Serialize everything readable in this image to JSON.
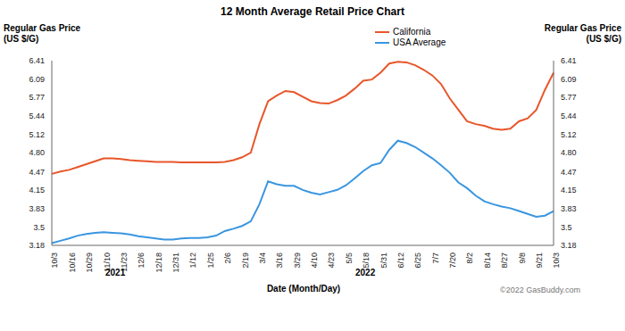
{
  "chart_data": {
    "type": "line",
    "title": "12 Month Average Retail Price Chart",
    "y_label": "Regular Gas Price (US $/G)",
    "y2_label": "Regular Gas Price (US $/G)",
    "x_label": "Date (Month/Day)",
    "annotations": [
      "2021",
      "2022",
      "©2022 GasBuddy.com"
    ],
    "categories": [
      "10/3",
      null,
      "10/16",
      null,
      "10/29",
      null,
      "11/10",
      null,
      "11/23",
      null,
      "12/6",
      null,
      "12/18",
      null,
      "12/31",
      null,
      "1/12",
      null,
      "1/25",
      null,
      "2/6",
      null,
      "2/19",
      null,
      "3/4",
      null,
      "3/16",
      null,
      "3/29",
      null,
      "4/10",
      null,
      "4/23",
      null,
      "5/5",
      null,
      "5/18",
      null,
      "5/31",
      null,
      "6/12",
      null,
      "6/25",
      null,
      "7/7",
      null,
      "7/20",
      null,
      "8/2",
      null,
      "8/14",
      null,
      "8/27",
      null,
      "9/8",
      null,
      "9/21",
      null,
      "10/3"
    ],
    "series": [
      {
        "name": "California",
        "color": "#e8562a",
        "values": [
          4.43,
          4.47,
          4.5,
          4.55,
          4.6,
          4.65,
          4.7,
          4.7,
          4.69,
          4.67,
          4.66,
          4.65,
          4.64,
          4.64,
          4.64,
          4.63,
          4.63,
          4.63,
          4.63,
          4.63,
          4.64,
          4.67,
          4.72,
          4.8,
          5.3,
          5.7,
          5.8,
          5.88,
          5.86,
          5.78,
          5.7,
          5.67,
          5.66,
          5.72,
          5.8,
          5.92,
          6.06,
          6.08,
          6.2,
          6.36,
          6.39,
          6.38,
          6.33,
          6.25,
          6.15,
          6.0,
          5.75,
          5.55,
          5.35,
          5.3,
          5.27,
          5.22,
          5.2,
          5.22,
          5.35,
          5.4,
          5.55,
          5.9,
          6.2
        ]
      },
      {
        "name": "USA Average",
        "color": "#3a96e0",
        "values": [
          3.22,
          3.26,
          3.3,
          3.35,
          3.38,
          3.4,
          3.41,
          3.4,
          3.39,
          3.37,
          3.34,
          3.32,
          3.3,
          3.28,
          3.28,
          3.3,
          3.31,
          3.31,
          3.32,
          3.35,
          3.43,
          3.47,
          3.52,
          3.6,
          3.9,
          4.3,
          4.25,
          4.22,
          4.22,
          4.15,
          4.1,
          4.07,
          4.11,
          4.15,
          4.23,
          4.35,
          4.48,
          4.58,
          4.62,
          4.85,
          5.01,
          4.97,
          4.9,
          4.8,
          4.7,
          4.58,
          4.45,
          4.28,
          4.18,
          4.05,
          3.95,
          3.9,
          3.86,
          3.83,
          3.78,
          3.73,
          3.68,
          3.7,
          3.78
        ]
      }
    ],
    "ylim": [
      3.18,
      6.41
    ],
    "yticks": [
      3.18,
      3.5,
      {
        "value": 3.83,
        "label": "3.83"
      },
      4.15,
      4.47,
      {
        "value": 4.8,
        "label": "4.80"
      },
      5.12,
      5.44,
      5.77,
      6.09,
      6.41
    ],
    "grid": false,
    "legend": "top-right"
  }
}
